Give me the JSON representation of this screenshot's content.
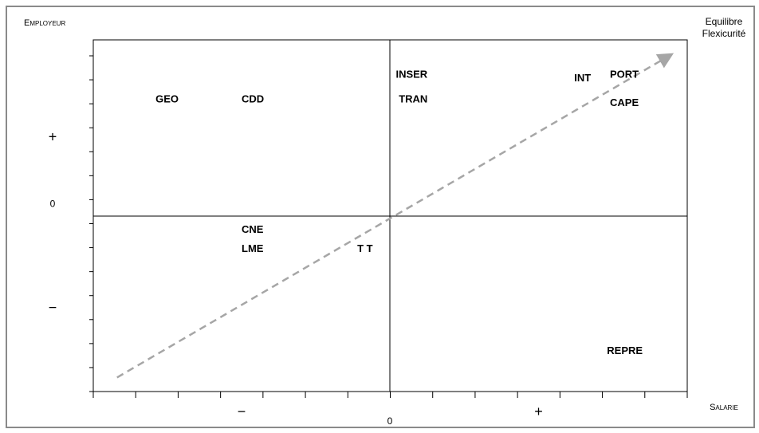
{
  "chart_data": {
    "type": "scatter",
    "title": "",
    "corner_labels": {
      "top_left": "Employeur",
      "top_right_line1": "Equilibre",
      "top_right_line2": "Flexicurité",
      "bottom_right": "Salarie"
    },
    "y_axis_marks": [
      {
        "label": "+",
        "pos": 0.45
      },
      {
        "label": "0",
        "pos": 0.08
      },
      {
        "label": "−",
        "pos": -0.52
      }
    ],
    "x_axis_marks": [
      {
        "label": "−",
        "pos": -0.5
      },
      {
        "label": "0",
        "pos": 0.0
      },
      {
        "label": "+",
        "pos": 0.5
      }
    ],
    "xlim": [
      -1,
      1
    ],
    "ylim": [
      -1,
      1
    ],
    "points": [
      {
        "label": "GEO",
        "x": -0.79,
        "y": 0.66
      },
      {
        "label": "CDD",
        "x": -0.5,
        "y": 0.66
      },
      {
        "label": "INSER",
        "x": 0.02,
        "y": 0.8
      },
      {
        "label": "TRAN",
        "x": 0.03,
        "y": 0.66
      },
      {
        "label": "INT",
        "x": 0.62,
        "y": 0.78
      },
      {
        "label": "PORT",
        "x": 0.74,
        "y": 0.8
      },
      {
        "label": "CAPE",
        "x": 0.74,
        "y": 0.64
      },
      {
        "label": "CNE",
        "x": -0.5,
        "y": -0.08
      },
      {
        "label": "LME",
        "x": -0.5,
        "y": -0.19
      },
      {
        "label": "T T",
        "x": -0.11,
        "y": -0.19
      },
      {
        "label": "REPRE",
        "x": 0.73,
        "y": -0.77
      }
    ],
    "trend_arrow": {
      "from": [
        -0.92,
        -0.92
      ],
      "to": [
        0.95,
        0.92
      ],
      "style": "dashed",
      "color": "#a6a6a6"
    },
    "y_minor_ticks": 14,
    "x_minor_ticks": 14,
    "grid": false,
    "legend": "none"
  }
}
